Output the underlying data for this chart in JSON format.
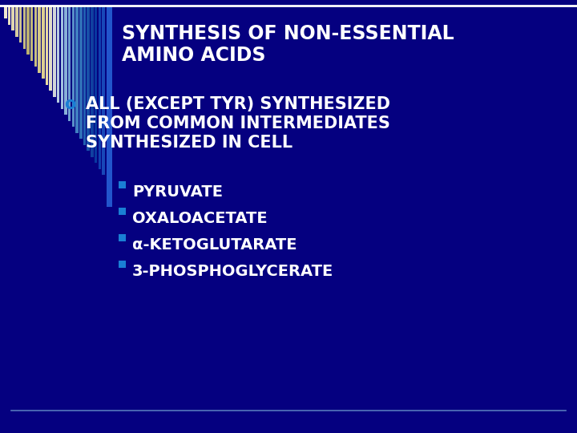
{
  "bg_color": "#050080",
  "title_line1": "SYNTHESIS OF NON-ESSENTIAL",
  "title_line2": "AMINO ACIDS",
  "title_color": "#ffffff",
  "title_fontsize": 17,
  "bullet1_char": "o",
  "bullet1_text_line1": "ALL (EXCEPT TYR) SYNTHESIZED",
  "bullet1_text_line2": "FROM COMMON INTERMEDIATES",
  "bullet1_text_line3": "SYNTHESIZED IN CELL",
  "bullet1_char_color": "#1a7fd4",
  "bullet1_text_color": "#ffffff",
  "bullet1_fontsize": 15,
  "sub_items": [
    "PYRUVATE",
    "OXALOACETATE",
    "α-KETOGLUTARATE",
    "3-PHOSPHOGLYCERATE"
  ],
  "sub_bullet_color": "#1a7fd4",
  "sub_text_color": "#ffffff",
  "sub_fontsize": 14,
  "bottom_bar_color": "#5577bb",
  "header_line_color": "#ffffff",
  "accent_bar_color": "#2255cc",
  "stripe_colors": [
    "#f0e8d0",
    "#e8dfc0",
    "#dfd6b0",
    "#d6cca0",
    "#cdc390",
    "#c4ba80",
    "#bbb070",
    "#c0b878",
    "#cac080",
    "#d4c888",
    "#ddd090",
    "#e8daa0",
    "#e0dcc8",
    "#d0d4d8",
    "#b8cce0",
    "#a0c0e0",
    "#88b0d8",
    "#70a0d0",
    "#5890c8",
    "#4080c0",
    "#3070b8",
    "#2060b0",
    "#1850a8",
    "#1040a0",
    "#0838a0",
    "#1040b0",
    "#1848b8"
  ],
  "accent_bar2_color": "#2244aa"
}
